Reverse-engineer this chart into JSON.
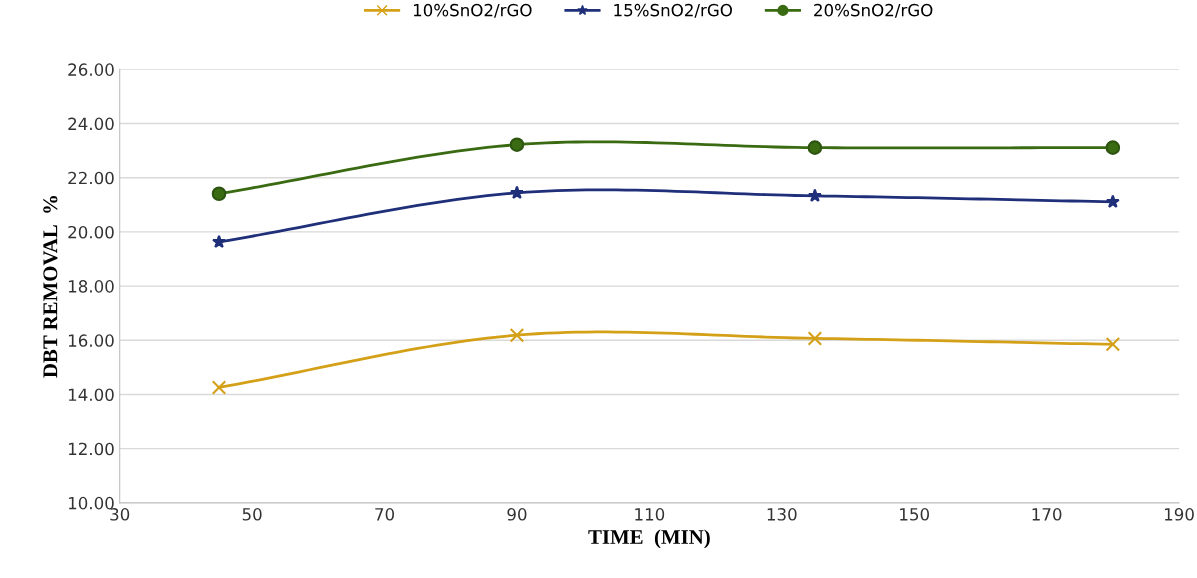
{
  "chart_data": {
    "type": "line",
    "xlabel": "TIME  (MIN)",
    "ylabel": "DBT REMOVAL  %",
    "x": [
      45,
      90,
      135,
      180
    ],
    "series": [
      {
        "name": "10%SnO2/rGO",
        "color": "#d4a017",
        "marker": "cross",
        "values": [
          14.26,
          16.19,
          16.07,
          15.85
        ]
      },
      {
        "name": "15%SnO2/rGO",
        "color": "#1f2f7a",
        "marker": "star",
        "values": [
          19.63,
          21.44,
          21.33,
          21.11
        ]
      },
      {
        "name": "20%SnO2/rGO",
        "color": "#3a6b12",
        "marker": "circle",
        "values": [
          21.41,
          23.22,
          23.11,
          23.11
        ]
      }
    ],
    "xlim": [
      30,
      190
    ],
    "xticks": [
      30,
      50,
      70,
      90,
      110,
      130,
      150,
      170,
      190
    ],
    "ylim": [
      10,
      26
    ],
    "yticks": [
      {
        "value": 10,
        "label": "10.00"
      },
      {
        "value": 12,
        "label": "12.00"
      },
      {
        "value": 14,
        "label": "14.00"
      },
      {
        "value": 16,
        "label": "16.00"
      },
      {
        "value": 18,
        "label": "18.00"
      },
      {
        "value": 20,
        "label": "20.00"
      },
      {
        "value": 22,
        "label": "22.00"
      },
      {
        "value": 24,
        "label": "24.00"
      },
      {
        "value": 26,
        "label": "26.00"
      }
    ],
    "grid": "y",
    "legend": "top",
    "line_style": "solid"
  }
}
